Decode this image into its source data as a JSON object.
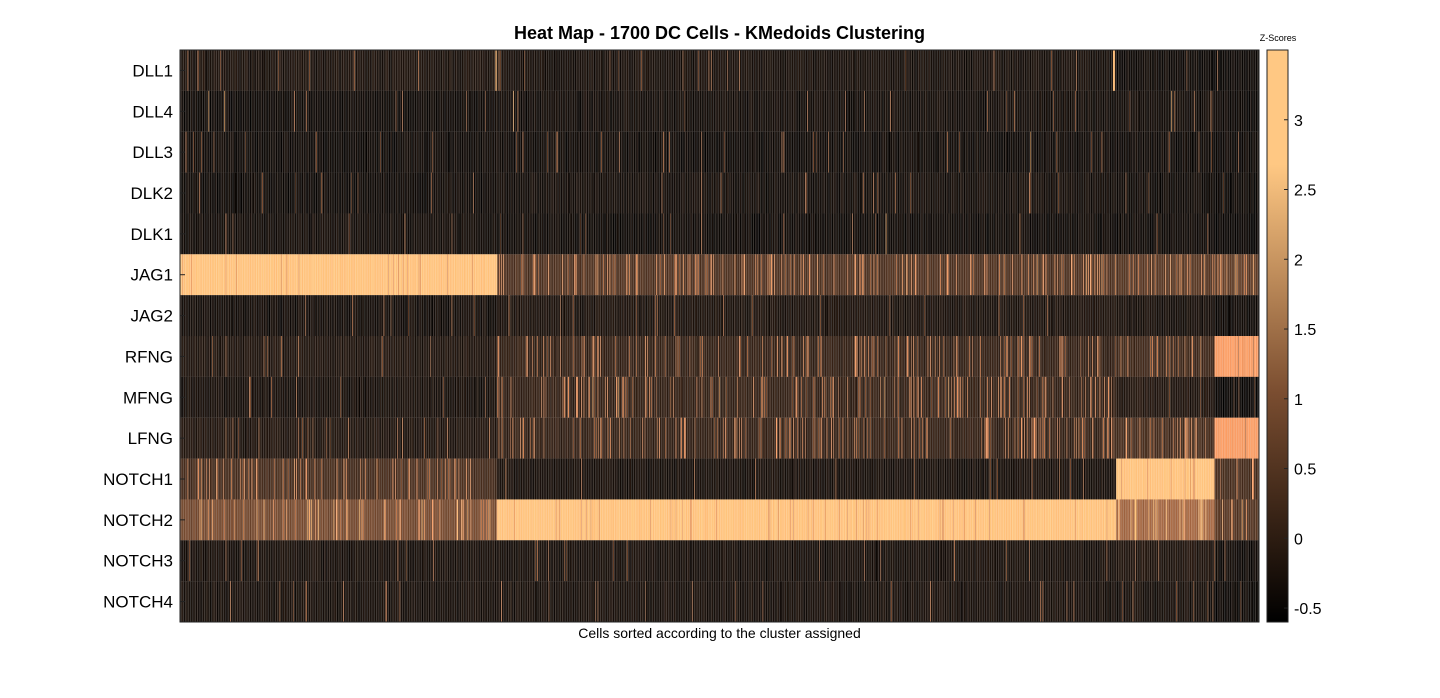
{
  "chart_data": {
    "type": "heatmap",
    "title": "Heat Map - 1700 DC Cells - KMedoids Clustering",
    "xlabel": "Cells sorted according to the cluster assigned",
    "colorbar_label": "Z-Scores",
    "rows": [
      "DLL1",
      "DLL4",
      "DLL3",
      "DLK2",
      "DLK1",
      "JAG1",
      "JAG2",
      "RFNG",
      "MFNG",
      "LFNG",
      "NOTCH1",
      "NOTCH2",
      "NOTCH3",
      "NOTCH4"
    ],
    "n_cells": 1700,
    "color_range": [
      -0.6,
      3.5
    ],
    "colorbar_ticks": [
      -0.5,
      0,
      0.5,
      1,
      1.5,
      2,
      2.5,
      3
    ],
    "colormap": "copper",
    "clusters": [
      {
        "start": 0,
        "end": 499,
        "levels": [
          -0.25,
          -0.4,
          -0.4,
          -0.4,
          -0.35,
          3.4,
          -0.35,
          -0.2,
          -0.3,
          -0.2,
          0.3,
          0.9,
          -0.3,
          -0.3
        ]
      },
      {
        "start": 500,
        "end": 1474,
        "levels": [
          -0.3,
          -0.35,
          -0.4,
          -0.35,
          -0.4,
          0.4,
          -0.25,
          0.05,
          0.05,
          0.05,
          -0.3,
          3.4,
          -0.3,
          -0.3
        ]
      },
      {
        "start": 1475,
        "end": 1629,
        "levels": [
          -0.4,
          -0.35,
          -0.4,
          -0.4,
          -0.4,
          0.5,
          -0.3,
          0.2,
          -0.2,
          0.3,
          3.4,
          1.5,
          -0.2,
          -0.3
        ]
      },
      {
        "start": 1630,
        "end": 1699,
        "levels": [
          -0.45,
          -0.4,
          -0.45,
          -0.45,
          -0.45,
          0.6,
          -0.4,
          2.6,
          -0.5,
          2.6,
          0.3,
          0.5,
          -0.4,
          -0.45
        ]
      }
    ],
    "highlights": [
      {
        "row": "DLL1",
        "cells": [
          497,
          498,
          1470,
          1471,
          1472
        ]
      },
      {
        "row": "DLL4",
        "cells": [
          45,
          70,
          525,
          1562
        ]
      },
      {
        "row": "DLL3",
        "cells": [
          1340
        ]
      },
      {
        "row": "DLK1",
        "cells": [
          1112
        ]
      },
      {
        "row": "MFNG",
        "cells": [
          650,
          690,
          850,
          1110,
          1210
        ]
      }
    ]
  }
}
